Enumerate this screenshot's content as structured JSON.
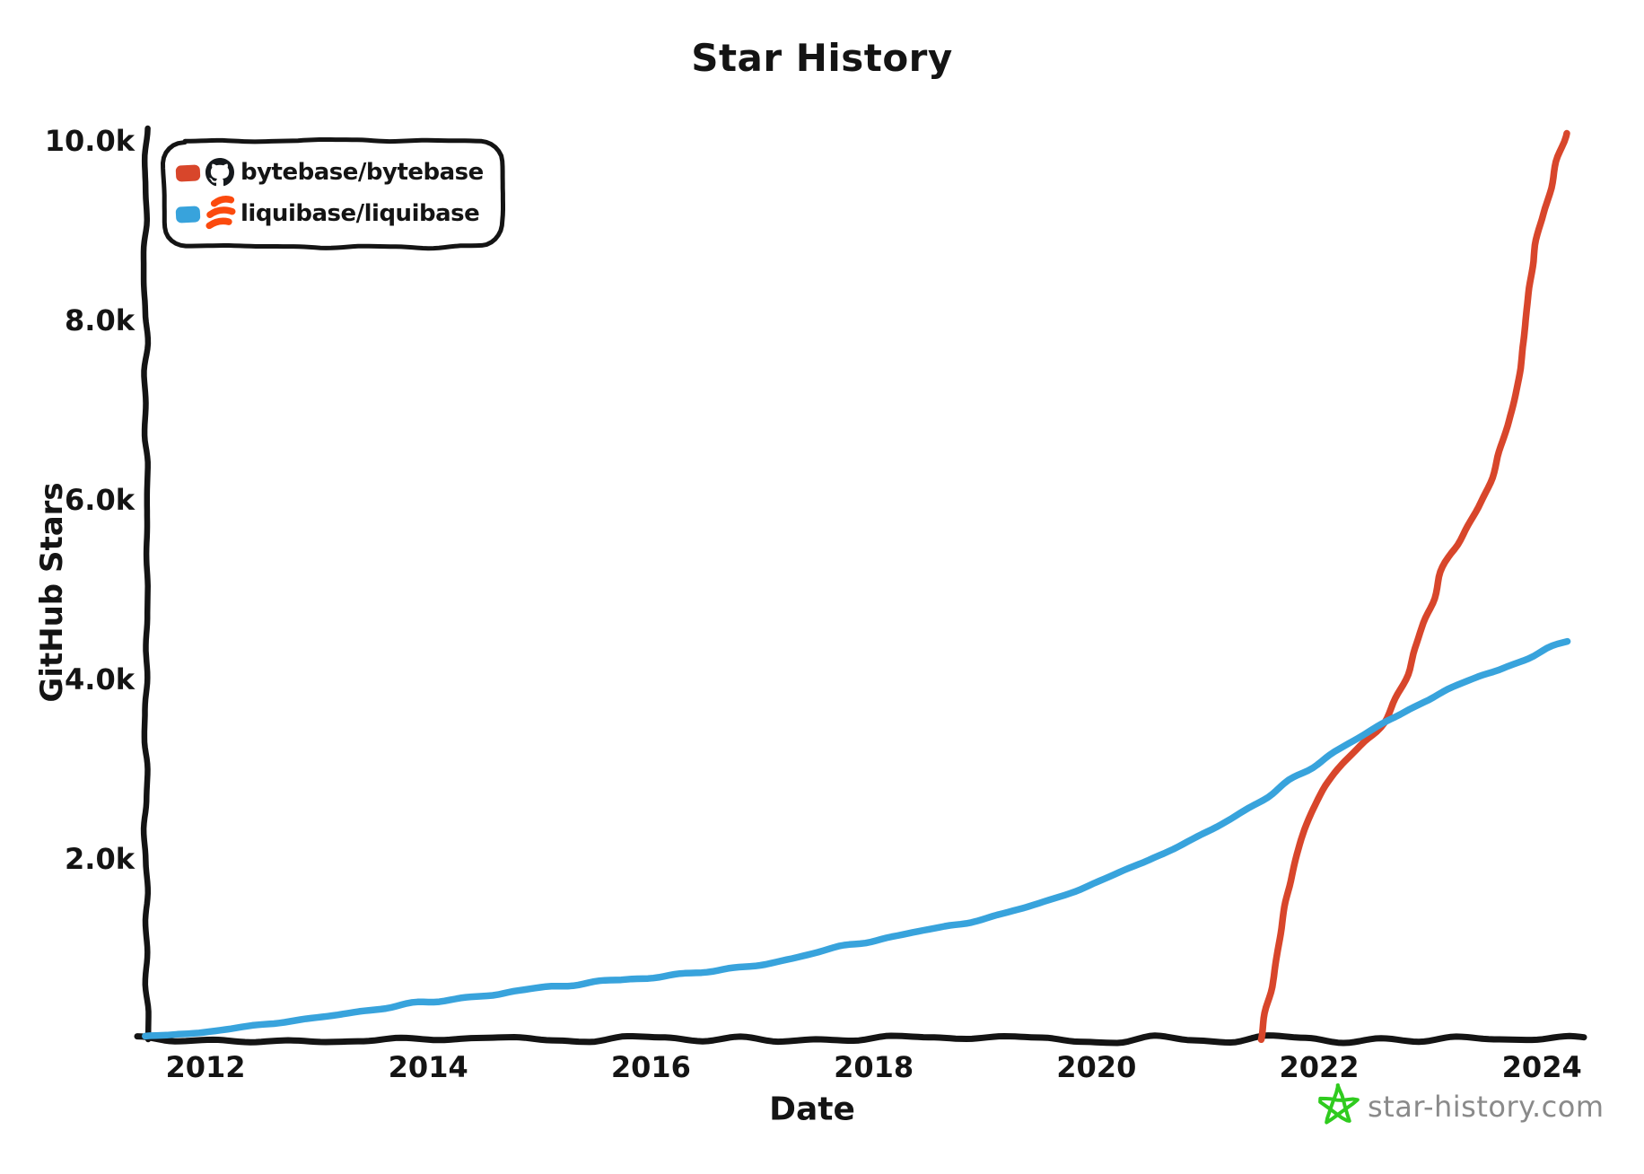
{
  "title": "Star History",
  "legend": {
    "items": [
      {
        "label": "bytebase/bytebase",
        "color": "#d8462b",
        "icon": "github-icon"
      },
      {
        "label": "liquibase/liquibase",
        "color": "#38a3dc",
        "icon": "liquibase-icon"
      }
    ]
  },
  "footer": {
    "label": "star-history.com",
    "star_color": "#2fcb1e",
    "text_color": "#8a8a8a"
  },
  "chart_data": {
    "type": "line",
    "title": "Star History",
    "xlabel": "Date",
    "ylabel": "GitHub Stars",
    "xlim": [
      2011.45,
      2024.45
    ],
    "ylim": [
      0,
      10000
    ],
    "grid": false,
    "legend_position": "top-left",
    "xticks": [
      {
        "v": 2012,
        "label": "2012"
      },
      {
        "v": 2014,
        "label": "2014"
      },
      {
        "v": 2016,
        "label": "2016"
      },
      {
        "v": 2018,
        "label": "2018"
      },
      {
        "v": 2020,
        "label": "2020"
      },
      {
        "v": 2022,
        "label": "2022"
      },
      {
        "v": 2024,
        "label": "2024"
      }
    ],
    "yticks": [
      {
        "v": 2000,
        "label": "2.0k"
      },
      {
        "v": 4000,
        "label": "4.0k"
      },
      {
        "v": 6000,
        "label": "6.0k"
      },
      {
        "v": 8000,
        "label": "8.0k"
      },
      {
        "v": 10000,
        "label": "10.0k"
      }
    ],
    "series": [
      {
        "name": "bytebase/bytebase",
        "color": "#d8462b",
        "points": [
          [
            2021.47,
            0
          ],
          [
            2021.56,
            500
          ],
          [
            2021.63,
            1050
          ],
          [
            2021.7,
            1600
          ],
          [
            2021.8,
            2160
          ],
          [
            2021.97,
            2700
          ],
          [
            2022.18,
            3060
          ],
          [
            2022.41,
            3300
          ],
          [
            2022.56,
            3490
          ],
          [
            2022.74,
            3890
          ],
          [
            2022.87,
            4350
          ],
          [
            2023.03,
            4930
          ],
          [
            2023.13,
            5350
          ],
          [
            2023.3,
            5600
          ],
          [
            2023.5,
            6080
          ],
          [
            2023.67,
            6720
          ],
          [
            2023.79,
            7320
          ],
          [
            2023.86,
            7820
          ],
          [
            2023.9,
            8600
          ],
          [
            2024.04,
            9310
          ],
          [
            2024.21,
            10100
          ]
        ]
      },
      {
        "name": "liquibase/liquibase",
        "color": "#38a3dc",
        "points": [
          [
            2011.46,
            20
          ],
          [
            2012,
            90
          ],
          [
            2012.5,
            170
          ],
          [
            2013,
            250
          ],
          [
            2013.5,
            335
          ],
          [
            2014,
            420
          ],
          [
            2014.5,
            490
          ],
          [
            2015,
            560
          ],
          [
            2015.5,
            630
          ],
          [
            2016,
            700
          ],
          [
            2016.5,
            760
          ],
          [
            2017,
            830
          ],
          [
            2017.4,
            930
          ],
          [
            2017.8,
            1060
          ],
          [
            2018,
            1100
          ],
          [
            2018.5,
            1220
          ],
          [
            2019,
            1350
          ],
          [
            2019.5,
            1520
          ],
          [
            2019.93,
            1700
          ],
          [
            2020.5,
            2000
          ],
          [
            2021.11,
            2380
          ],
          [
            2021.6,
            2760
          ],
          [
            2022,
            3100
          ],
          [
            2022.56,
            3490
          ],
          [
            2023.05,
            3850
          ],
          [
            2023.5,
            4060
          ],
          [
            2023.85,
            4250
          ],
          [
            2024.23,
            4430
          ]
        ]
      }
    ]
  }
}
